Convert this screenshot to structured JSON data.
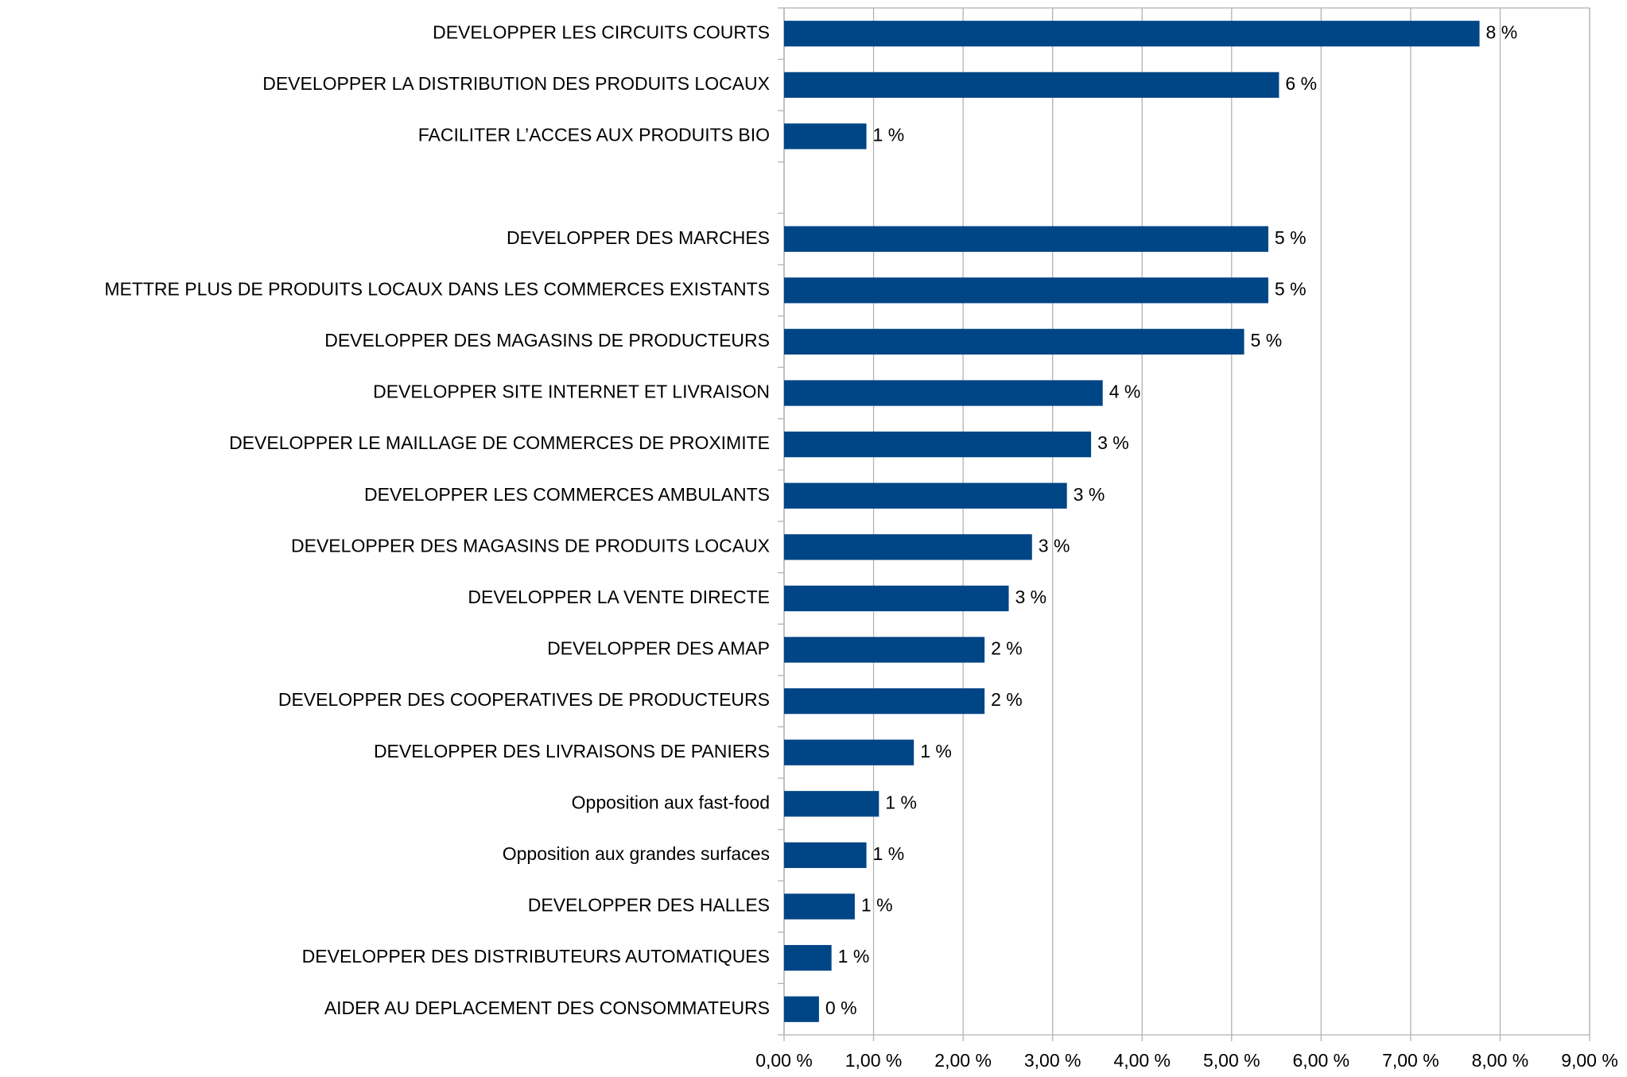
{
  "chart_data": {
    "type": "bar",
    "orientation": "horizontal",
    "categories": [
      "DEVELOPPER LES CIRCUITS COURTS",
      "DEVELOPPER LA DISTRIBUTION DES PRODUITS LOCAUX",
      "FACILITER L’ACCES AUX PRODUITS BIO",
      null,
      "DEVELOPPER DES MARCHES",
      "METTRE PLUS DE PRODUITS LOCAUX DANS LES COMMERCES EXISTANTS",
      "DEVELOPPER DES MAGASINS DE PRODUCTEURS",
      "DEVELOPPER SITE INTERNET ET LIVRAISON",
      "DEVELOPPER LE MAILLAGE DE COMMERCES DE PROXIMITE",
      "DEVELOPPER LES COMMERCES AMBULANTS",
      "DEVELOPPER DES MAGASINS DE PRODUITS LOCAUX",
      "DEVELOPPER LA VENTE DIRECTE",
      "DEVELOPPER DES AMAP",
      "DEVELOPPER DES COOPERATIVES DE PRODUCTEURS",
      "DEVELOPPER DES LIVRAISONS DE PANIERS",
      "Opposition aux fast-food",
      "Opposition aux grandes surfaces",
      "DEVELOPPER DES HALLES",
      "DEVELOPPER DES DISTRIBUTEURS AUTOMATIQUES",
      "AIDER AU DEPLACEMENT DES CONSOMMATEURS"
    ],
    "values": [
      7.77,
      5.53,
      0.92,
      null,
      5.41,
      5.41,
      5.14,
      3.56,
      3.43,
      3.16,
      2.77,
      2.51,
      2.24,
      2.24,
      1.45,
      1.06,
      0.92,
      0.79,
      0.53,
      0.39
    ],
    "value_labels": [
      "8 %",
      "6 %",
      "1 %",
      null,
      "5 %",
      "5 %",
      "5 %",
      "4 %",
      "3 %",
      "3 %",
      "3 %",
      "3 %",
      "2 %",
      "2 %",
      "1 %",
      "1 %",
      "1 %",
      "1 %",
      "1 %",
      "0 %"
    ],
    "color": "#004586",
    "xlim": [
      0,
      9
    ],
    "xticks": [
      {
        "value": 0,
        "label": "0,00 %"
      },
      {
        "value": 1,
        "label": "1,00 %"
      },
      {
        "value": 2,
        "label": "2,00 %"
      },
      {
        "value": 3,
        "label": "3,00 %"
      },
      {
        "value": 4,
        "label": "4,00 %"
      },
      {
        "value": 5,
        "label": "5,00 %"
      },
      {
        "value": 6,
        "label": "6,00 %"
      },
      {
        "value": 7,
        "label": "7,00 %"
      },
      {
        "value": 8,
        "label": "8,00 %"
      },
      {
        "value": 9,
        "label": "9,00 %"
      }
    ],
    "grid": true
  }
}
